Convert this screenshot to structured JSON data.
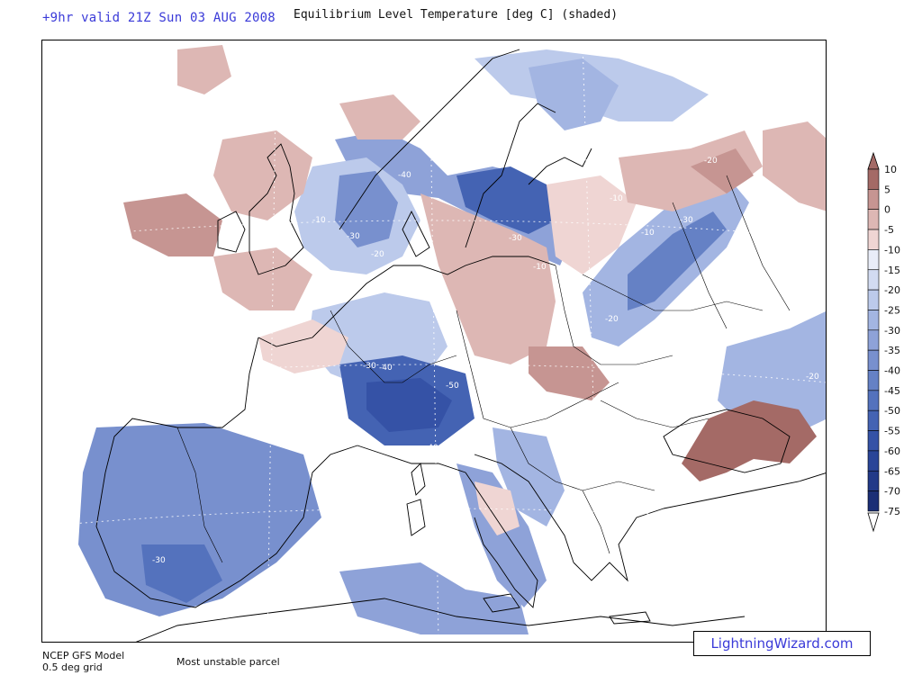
{
  "header": {
    "valid_time": "+9hr valid 21Z Sun 03 AUG 2008",
    "title": "Equilibrium Level Temperature [deg C] (shaded)"
  },
  "footer": {
    "model": "NCEP GFS Model",
    "grid": "0.5 deg grid",
    "parcel": "Most unstable parcel",
    "brand": "LightningWizard.com"
  },
  "legend": {
    "labels": [
      "10",
      "5",
      "0",
      "-5",
      "-10",
      "-15",
      "-20",
      "-25",
      "-30",
      "-35",
      "-40",
      "-45",
      "-50",
      "-55",
      "-60",
      "-65",
      "-70",
      "-75"
    ],
    "colors": [
      "#a46a66",
      "#c69592",
      "#ddb7b4",
      "#efd5d3",
      "#e9edf8",
      "#d2dbf1",
      "#bccaeb",
      "#a3b5e2",
      "#8ea2d8",
      "#7890ce",
      "#6581c5",
      "#5472bd",
      "#4463b3",
      "#3552a6",
      "#2a4598",
      "#223a88",
      "#1b2f76"
    ]
  },
  "map": {
    "contour_labels": [
      "-10",
      "-30",
      "-20",
      "-40",
      "-10",
      "-30",
      "-10",
      "-20",
      "-10",
      "-30",
      "-20",
      "-30",
      "-40",
      "-50",
      "-40",
      "-20",
      "-30"
    ],
    "colors": {
      "warm_light": "#efd5d3",
      "warm": "#ddb7b4",
      "warm_mid": "#c69592",
      "warm_dark": "#a46a66",
      "cool_light": "#d2dbf1",
      "cool": "#a3b5e2",
      "cool_mid": "#7890ce",
      "cool_dark": "#5472bd",
      "cool_deep": "#3552a6",
      "coast": "#000000"
    }
  }
}
